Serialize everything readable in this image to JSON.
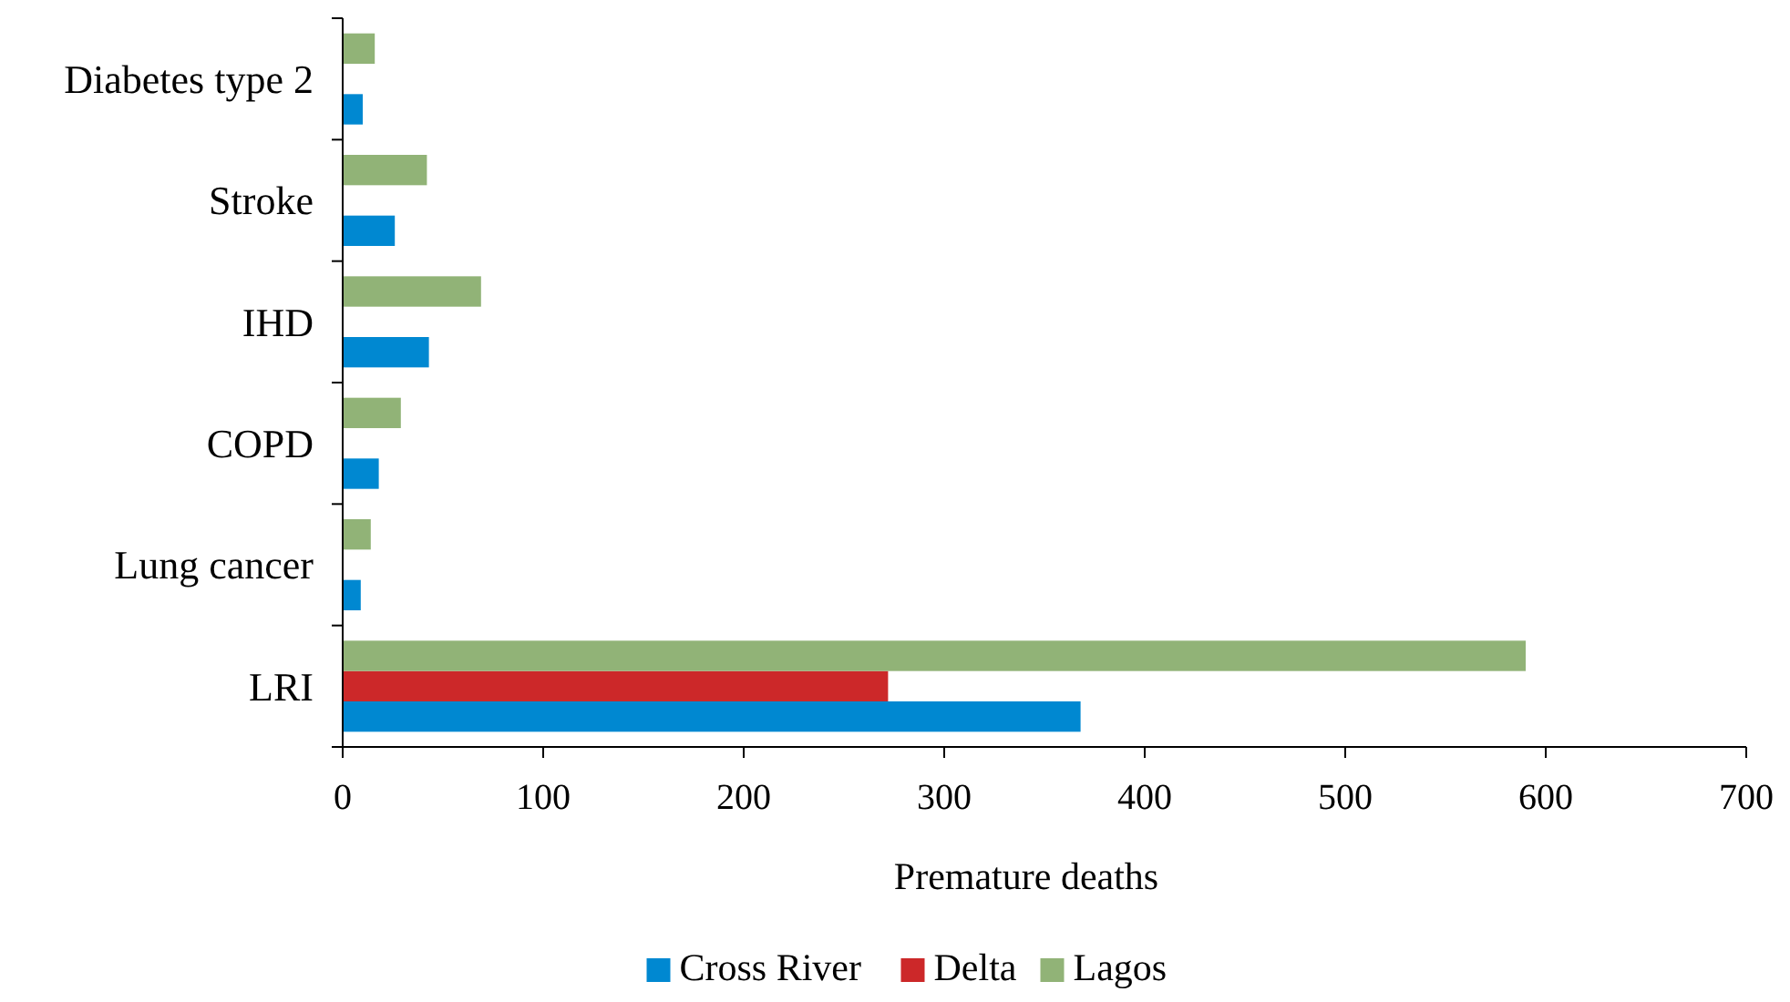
{
  "chart_data": {
    "type": "bar",
    "orientation": "horizontal",
    "xlabel": "Premature deaths",
    "categories": [
      "Diabetes type 2",
      "Stroke",
      "IHD",
      "COPD",
      "Lung cancer",
      "LRI"
    ],
    "series": [
      {
        "name": "Cross River",
        "color": "#0088d1",
        "values": [
          10,
          26,
          43,
          18,
          9,
          368
        ]
      },
      {
        "name": "Delta",
        "color": "#cc2829",
        "values": [
          null,
          null,
          null,
          null,
          null,
          272
        ]
      },
      {
        "name": "Lagos",
        "color": "#91b377",
        "values": [
          16,
          42,
          69,
          29,
          14,
          590
        ]
      }
    ],
    "xlim": [
      0,
      700
    ],
    "xticks": [
      0,
      100,
      200,
      300,
      400,
      500,
      600,
      700
    ],
    "grid": false,
    "legend": "bottom"
  }
}
